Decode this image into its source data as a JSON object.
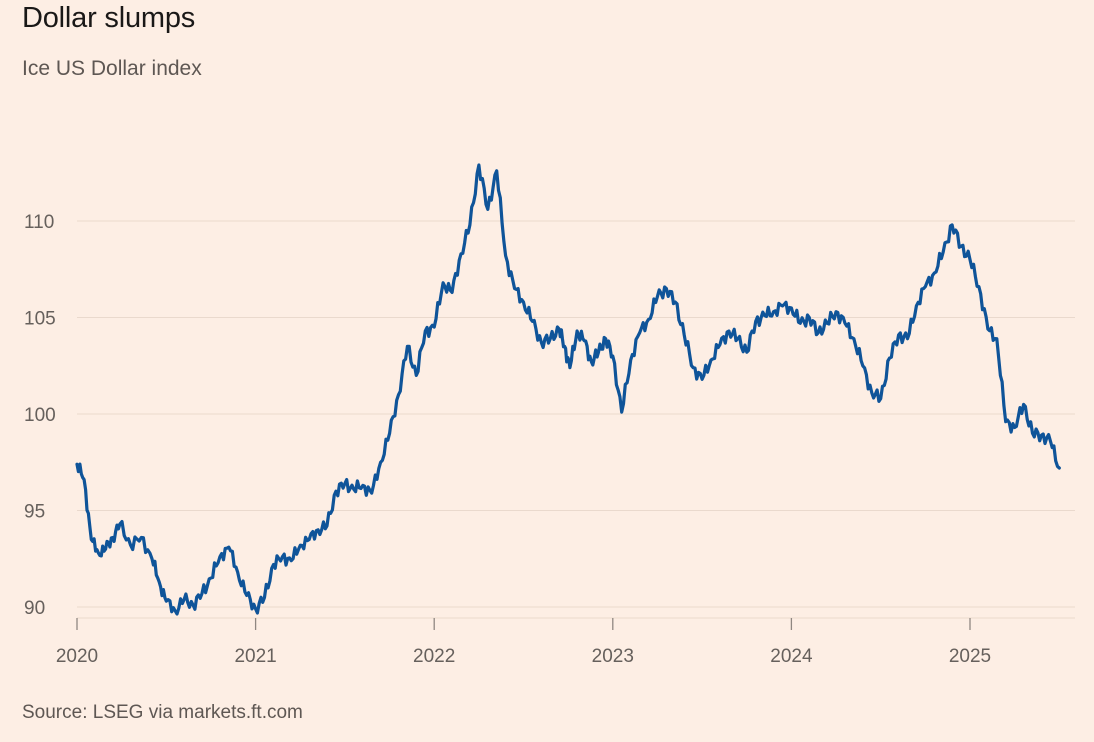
{
  "header": {
    "title": "Dollar slumps",
    "subtitle": "Ice US Dollar index"
  },
  "footer": {
    "source": "Source: LSEG via markets.ft.com"
  },
  "colors": {
    "background": "#fdeee4",
    "line": "#0f5499",
    "grid": "#ead9cd",
    "axis": "#66605c"
  },
  "chart_data": {
    "type": "line",
    "title": "Dollar slumps",
    "subtitle": "Ice US Dollar index",
    "xlabel": "",
    "ylabel": "",
    "ylim": [
      89,
      114
    ],
    "xlim": [
      2020.0,
      2025.5
    ],
    "y_ticks": [
      90,
      95,
      100,
      105,
      110
    ],
    "y_tick_labels": [
      "90",
      "95",
      "100",
      "105",
      "110"
    ],
    "x_ticks": [
      2020,
      2021,
      2022,
      2023,
      2024,
      2025
    ],
    "x_tick_labels": [
      "2020",
      "2021",
      "2022",
      "2023",
      "2024",
      "2025"
    ],
    "grid": "horizontal",
    "legend": "none",
    "series": [
      {
        "name": "Ice US Dollar index",
        "x": [
          2020.0,
          2020.04,
          2020.08,
          2020.12,
          2020.16,
          2020.2,
          2020.24,
          2020.3,
          2020.36,
          2020.42,
          2020.46,
          2020.5,
          2020.55,
          2020.6,
          2020.65,
          2020.7,
          2020.75,
          2020.8,
          2020.85,
          2020.9,
          2020.95,
          2021.0,
          2021.05,
          2021.1,
          2021.15,
          2021.2,
          2021.25,
          2021.3,
          2021.35,
          2021.4,
          2021.45,
          2021.5,
          2021.55,
          2021.6,
          2021.65,
          2021.7,
          2021.75,
          2021.8,
          2021.85,
          2021.9,
          2021.95,
          2022.0,
          2022.05,
          2022.1,
          2022.15,
          2022.2,
          2022.25,
          2022.3,
          2022.35,
          2022.4,
          2022.45,
          2022.5,
          2022.55,
          2022.6,
          2022.65,
          2022.7,
          2022.73,
          2022.76,
          2022.8,
          2022.84,
          2022.88,
          2022.92,
          2022.96,
          2023.0,
          2023.05,
          2023.1,
          2023.15,
          2023.2,
          2023.25,
          2023.3,
          2023.35,
          2023.4,
          2023.45,
          2023.5,
          2023.55,
          2023.6,
          2023.65,
          2023.7,
          2023.75,
          2023.8,
          2023.85,
          2023.9,
          2023.95,
          2024.0,
          2024.05,
          2024.1,
          2024.15,
          2024.2,
          2024.25,
          2024.3,
          2024.35,
          2024.4,
          2024.45,
          2024.5,
          2024.55,
          2024.6,
          2024.65,
          2024.7,
          2024.75,
          2024.8,
          2024.85,
          2024.9,
          2024.95,
          2025.0,
          2025.05,
          2025.1,
          2025.15,
          2025.2,
          2025.25,
          2025.3,
          2025.35,
          2025.4,
          2025.45,
          2025.5
        ],
        "values": [
          97.4,
          96.6,
          93.5,
          92.8,
          93.0,
          93.6,
          94.3,
          93.2,
          93.6,
          92.5,
          91.3,
          90.3,
          89.8,
          90.4,
          90.1,
          90.7,
          91.5,
          92.6,
          93.1,
          91.8,
          90.6,
          89.9,
          90.5,
          92.2,
          92.6,
          92.4,
          93.2,
          93.5,
          94.0,
          94.2,
          96.0,
          96.4,
          96.1,
          96.3,
          95.9,
          97.5,
          99.0,
          101.0,
          103.5,
          102.0,
          104.3,
          104.5,
          106.8,
          106.3,
          108.3,
          109.8,
          112.9,
          110.6,
          112.6,
          108.2,
          106.5,
          105.8,
          104.8,
          103.7,
          103.9,
          104.4,
          103.5,
          102.4,
          104.3,
          103.8,
          102.7,
          103.2,
          103.9,
          103.0,
          100.1,
          102.8,
          104.2,
          104.9,
          106.1,
          106.5,
          105.8,
          104.1,
          102.4,
          101.8,
          102.8,
          103.6,
          104.3,
          103.9,
          103.2,
          104.8,
          105.1,
          105.3,
          105.6,
          105.5,
          104.7,
          105.0,
          104.2,
          104.7,
          105.3,
          104.7,
          103.9,
          102.5,
          101.1,
          100.8,
          102.9,
          104.1,
          103.9,
          105.6,
          106.6,
          107.3,
          108.4,
          109.8,
          108.7,
          108.0,
          106.6,
          104.4,
          103.9,
          99.6,
          99.3,
          100.5,
          99.0,
          98.9,
          98.6,
          97.2
        ]
      }
    ]
  }
}
